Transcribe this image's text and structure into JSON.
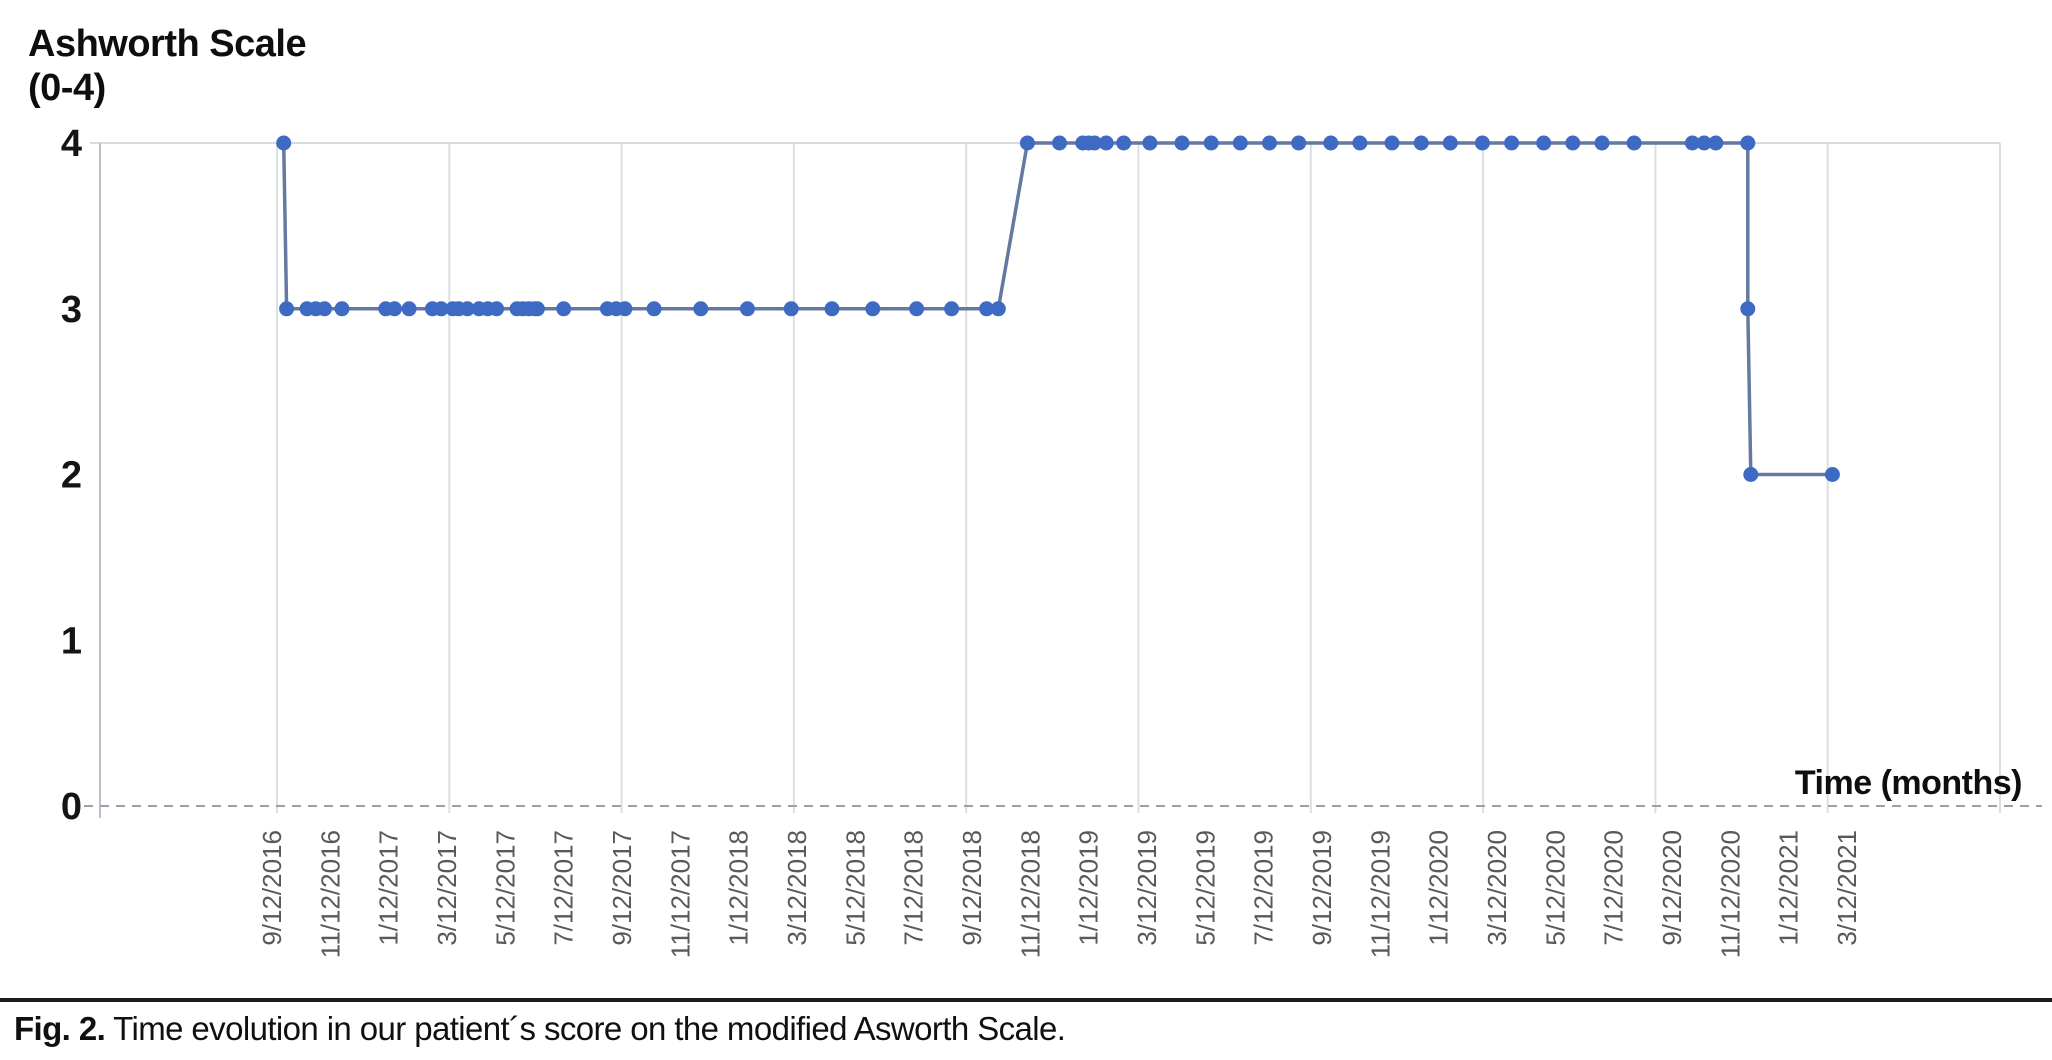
{
  "figure": {
    "y_axis_title_line1": "Ashworth Scale",
    "y_axis_title_line2": "(0-4)",
    "x_axis_title": "Time (months)",
    "caption_label": "Fig. 2.",
    "caption_text": "Time evolution in our patient´s score on the modified Asworth Scale."
  },
  "chart_data": {
    "type": "line",
    "title": "",
    "xlabel": "Time (months)",
    "ylabel": "Ashworth Scale (0-4)",
    "ylim": [
      0,
      4
    ],
    "y_ticks": [
      4,
      3,
      2,
      1,
      0
    ],
    "x_tick_labels": [
      "9/12/2016",
      "11/12/2016",
      "1/12/2017",
      "3/12/2017",
      "5/12/2017",
      "7/12/2017",
      "9/12/2017",
      "11/12/2017",
      "1/12/2018",
      "3/12/2018",
      "5/12/2018",
      "7/12/2018",
      "9/12/2018",
      "11/12/2018",
      "1/12/2019",
      "3/12/2019",
      "5/12/2019",
      "7/12/2019",
      "9/12/2019",
      "11/12/2019",
      "1/12/2020",
      "3/12/2020",
      "5/12/2020",
      "7/12/2020",
      "9/12/2020",
      "11/12/2020",
      "1/12/2021",
      "3/12/2021"
    ],
    "x_unit": "months after 9/12/2016 (x tick labels are every 2 months)",
    "series_name": "Modified Ashworth Scale score",
    "points": [
      [
        0.4,
        4
      ],
      [
        0.5,
        3
      ],
      [
        1.2,
        3
      ],
      [
        1.5,
        3
      ],
      [
        1.8,
        3
      ],
      [
        2.4,
        3
      ],
      [
        3.9,
        3
      ],
      [
        4.2,
        3
      ],
      [
        4.7,
        3
      ],
      [
        5.5,
        3
      ],
      [
        5.8,
        3
      ],
      [
        6.2,
        3
      ],
      [
        6.4,
        3
      ],
      [
        6.7,
        3
      ],
      [
        7.1,
        3
      ],
      [
        7.4,
        3
      ],
      [
        7.7,
        3
      ],
      [
        8.4,
        3
      ],
      [
        8.6,
        3
      ],
      [
        8.8,
        3
      ],
      [
        9.0,
        3
      ],
      [
        9.1,
        3
      ],
      [
        10.0,
        3
      ],
      [
        11.5,
        3
      ],
      [
        11.8,
        3
      ],
      [
        12.1,
        3
      ],
      [
        13.1,
        3
      ],
      [
        14.7,
        3
      ],
      [
        16.3,
        3
      ],
      [
        17.8,
        3
      ],
      [
        19.2,
        3
      ],
      [
        20.6,
        3
      ],
      [
        22.1,
        3
      ],
      [
        23.3,
        3
      ],
      [
        24.5,
        3
      ],
      [
        24.9,
        3
      ],
      [
        25.9,
        4
      ],
      [
        27.0,
        4
      ],
      [
        27.8,
        4
      ],
      [
        28.0,
        4
      ],
      [
        28.2,
        4
      ],
      [
        28.6,
        4
      ],
      [
        29.2,
        4
      ],
      [
        30.1,
        4
      ],
      [
        31.2,
        4
      ],
      [
        32.2,
        4
      ],
      [
        33.2,
        4
      ],
      [
        34.2,
        4
      ],
      [
        35.2,
        4
      ],
      [
        36.3,
        4
      ],
      [
        37.3,
        4
      ],
      [
        38.4,
        4
      ],
      [
        39.4,
        4
      ],
      [
        40.4,
        4
      ],
      [
        41.5,
        4
      ],
      [
        42.5,
        4
      ],
      [
        43.6,
        4
      ],
      [
        44.6,
        4
      ],
      [
        45.6,
        4
      ],
      [
        46.7,
        4
      ],
      [
        48.7,
        4
      ],
      [
        49.1,
        4
      ],
      [
        49.5,
        4
      ],
      [
        50.6,
        4
      ],
      [
        50.6,
        3
      ],
      [
        50.7,
        2
      ],
      [
        53.5,
        2
      ]
    ],
    "marker_color": "#3e6ac3",
    "line_color": "#64799e",
    "grid": "vertical gridlines every 6 months; horizontal gridline only at y=4; dashed gray baseline at y=0; legend: none"
  }
}
